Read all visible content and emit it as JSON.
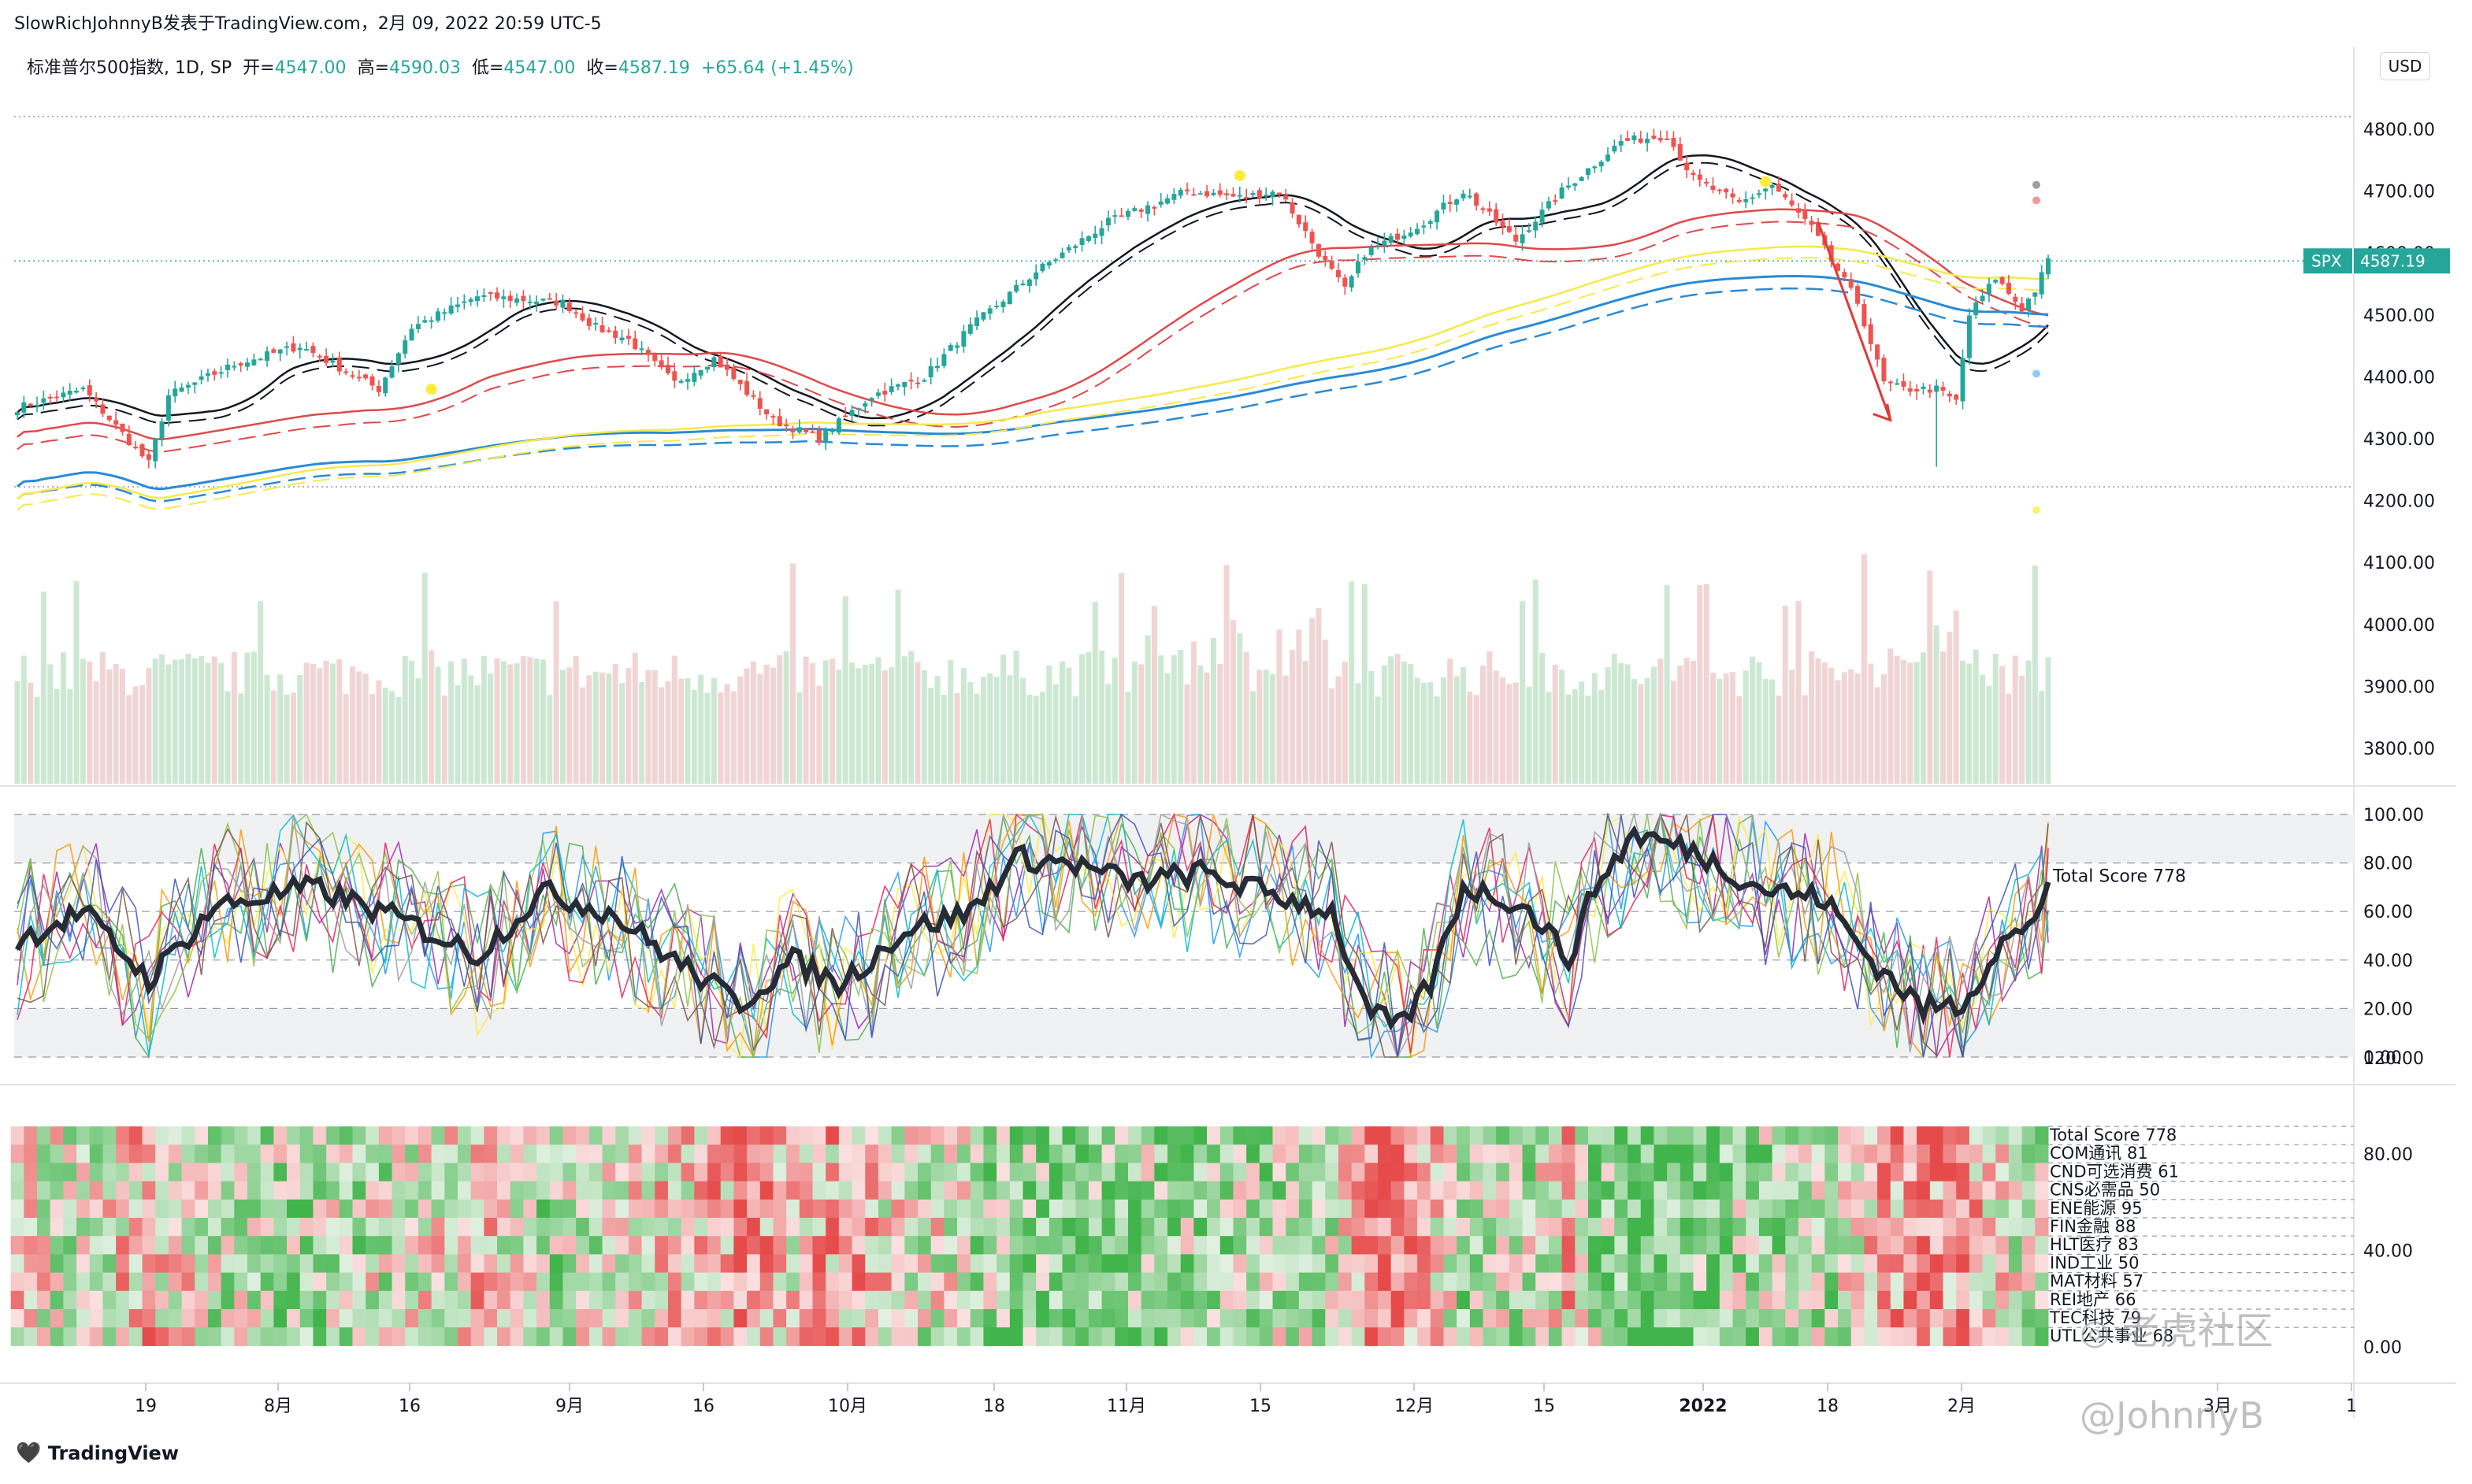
{
  "header": {
    "publisher": "SlowRichJohnnyB发表于TradingView.com，2月 09, 2022 20:59 UTC-5"
  },
  "legend": {
    "symbol": "标准普尔500指数, 1D, SP",
    "open_label": "开=",
    "open": "4547.00",
    "high_label": "高=",
    "high": "4590.03",
    "low_label": "低=",
    "low": "4547.00",
    "close_label": "收=",
    "close": "4587.19",
    "change": "+65.64 (+1.45%)"
  },
  "currency_button": "USD",
  "price_tag": {
    "symbol": "SPX",
    "value": "4587.19"
  },
  "indicator_label": "Total Score 778",
  "heatmap_labels": [
    "Total Score 778",
    "COM通讯 81",
    "CND可选消费 61",
    "CNS必需品 50",
    "ENE能源 95",
    "FIN金融 88",
    "HLT医疗 83",
    "IND工业 50",
    "MAT材料 57",
    "REI地产 66",
    "TEC科技 79",
    "UTL公共事业 68"
  ],
  "footer": {
    "brand": "TradingView"
  },
  "watermark": {
    "line1": "老虎社区",
    "line2": "@JohnnyB"
  },
  "colors": {
    "up": "#26a69a",
    "down": "#ef5350",
    "ma_black": "#131722",
    "ma_red": "#e0494b",
    "ma_blue": "#2a8ad4",
    "ma_yellow": "#f5e94a",
    "volume_up": "#cde8d2",
    "volume_down": "#f1d4d4"
  },
  "chart_data": [
    {
      "type": "candlestick",
      "title": "标准普尔500指数, 1D, SP",
      "y_axis": {
        "ticks": [
          3800,
          3900,
          4000,
          4100,
          4200,
          4300,
          4400,
          4500,
          4600,
          4700,
          4800
        ],
        "range": [
          3740,
          4860
        ]
      },
      "x_axis": {
        "ticks": [
          "19",
          "8月",
          "16",
          "9月",
          "16",
          "10月",
          "18",
          "11月",
          "15",
          "12月",
          "15",
          "2022",
          "18",
          "2月",
          "3月",
          "1"
        ]
      },
      "anchors": [
        {
          "i": 0,
          "close": 4350
        },
        {
          "i": 10,
          "close": 4380
        },
        {
          "i": 20,
          "close": 4260
        },
        {
          "i": 23,
          "close": 4370
        },
        {
          "i": 33,
          "close": 4420
        },
        {
          "i": 43,
          "close": 4450
        },
        {
          "i": 55,
          "close": 4380
        },
        {
          "i": 60,
          "close": 4480
        },
        {
          "i": 70,
          "close": 4530
        },
        {
          "i": 83,
          "close": 4520
        },
        {
          "i": 88,
          "close": 4480
        },
        {
          "i": 93,
          "close": 4460
        },
        {
          "i": 100,
          "close": 4390
        },
        {
          "i": 106,
          "close": 4430
        },
        {
          "i": 115,
          "close": 4330
        },
        {
          "i": 122,
          "close": 4300
        },
        {
          "i": 130,
          "close": 4370
        },
        {
          "i": 138,
          "close": 4400
        },
        {
          "i": 145,
          "close": 4480
        },
        {
          "i": 155,
          "close": 4570
        },
        {
          "i": 166,
          "close": 4650
        },
        {
          "i": 178,
          "close": 4700
        },
        {
          "i": 186,
          "close": 4690
        },
        {
          "i": 192,
          "close": 4700
        },
        {
          "i": 198,
          "close": 4600
        },
        {
          "i": 202,
          "close": 4540
        },
        {
          "i": 205,
          "close": 4600
        },
        {
          "i": 214,
          "close": 4650
        },
        {
          "i": 220,
          "close": 4700
        },
        {
          "i": 228,
          "close": 4620
        },
        {
          "i": 235,
          "close": 4700
        },
        {
          "i": 244,
          "close": 4780
        },
        {
          "i": 251,
          "close": 4790
        },
        {
          "i": 255,
          "close": 4720
        },
        {
          "i": 262,
          "close": 4680
        },
        {
          "i": 267,
          "close": 4710
        },
        {
          "i": 273,
          "close": 4640
        },
        {
          "i": 280,
          "close": 4520
        },
        {
          "i": 284,
          "close": 4390
        },
        {
          "i": 287,
          "close": 4380
        },
        {
          "i": 292,
          "close": 4380
        },
        {
          "i": 295,
          "close": 4360
        },
        {
          "i": 297,
          "close": 4500
        },
        {
          "i": 301,
          "close": 4560
        },
        {
          "i": 305,
          "close": 4510
        },
        {
          "i": 307,
          "close": 4540
        },
        {
          "i": 309,
          "close": 4587
        }
      ],
      "last_price": 4587.19,
      "moving_averages": [
        {
          "name": "MA20",
          "color": "#131722"
        },
        {
          "name": "MA50",
          "color": "#e0494b"
        },
        {
          "name": "MA100",
          "color": "#2a8ad4"
        },
        {
          "name": "MA200",
          "color": "#f5e94a"
        }
      ]
    },
    {
      "type": "line",
      "title": "Total Score 778",
      "y_axis": {
        "ticks": [
          0,
          20,
          40,
          60,
          80,
          100
        ],
        "range": [
          0,
          100
        ]
      },
      "score_anchors": [
        {
          "i": 0,
          "v": 48
        },
        {
          "i": 10,
          "v": 60
        },
        {
          "i": 20,
          "v": 32
        },
        {
          "i": 30,
          "v": 62
        },
        {
          "i": 45,
          "v": 70
        },
        {
          "i": 60,
          "v": 55
        },
        {
          "i": 70,
          "v": 42
        },
        {
          "i": 80,
          "v": 68
        },
        {
          "i": 90,
          "v": 60
        },
        {
          "i": 100,
          "v": 40
        },
        {
          "i": 110,
          "v": 22
        },
        {
          "i": 118,
          "v": 40
        },
        {
          "i": 125,
          "v": 30
        },
        {
          "i": 135,
          "v": 52
        },
        {
          "i": 145,
          "v": 60
        },
        {
          "i": 152,
          "v": 82
        },
        {
          "i": 160,
          "v": 80
        },
        {
          "i": 170,
          "v": 72
        },
        {
          "i": 180,
          "v": 76
        },
        {
          "i": 190,
          "v": 68
        },
        {
          "i": 200,
          "v": 60
        },
        {
          "i": 205,
          "v": 20
        },
        {
          "i": 210,
          "v": 12
        },
        {
          "i": 215,
          "v": 30
        },
        {
          "i": 220,
          "v": 70
        },
        {
          "i": 228,
          "v": 64
        },
        {
          "i": 232,
          "v": 55
        },
        {
          "i": 236,
          "v": 40
        },
        {
          "i": 240,
          "v": 70
        },
        {
          "i": 246,
          "v": 92
        },
        {
          "i": 255,
          "v": 85
        },
        {
          "i": 265,
          "v": 70
        },
        {
          "i": 275,
          "v": 65
        },
        {
          "i": 282,
          "v": 40
        },
        {
          "i": 290,
          "v": 20
        },
        {
          "i": 296,
          "v": 22
        },
        {
          "i": 302,
          "v": 48
        },
        {
          "i": 306,
          "v": 52
        },
        {
          "i": 309,
          "v": 72
        }
      ]
    },
    {
      "type": "heatmap",
      "title": "Total Score 778",
      "y_axis": {
        "ticks": [
          0,
          40,
          80,
          120
        ]
      },
      "rows": [
        "Total Score",
        "COM",
        "CND",
        "CNS",
        "ENE",
        "FIN",
        "HLT",
        "IND",
        "MAT",
        "REI",
        "TEC",
        "UTL"
      ],
      "latest_scores": [
        778,
        81,
        61,
        50,
        95,
        88,
        83,
        50,
        57,
        66,
        79,
        68
      ]
    }
  ]
}
